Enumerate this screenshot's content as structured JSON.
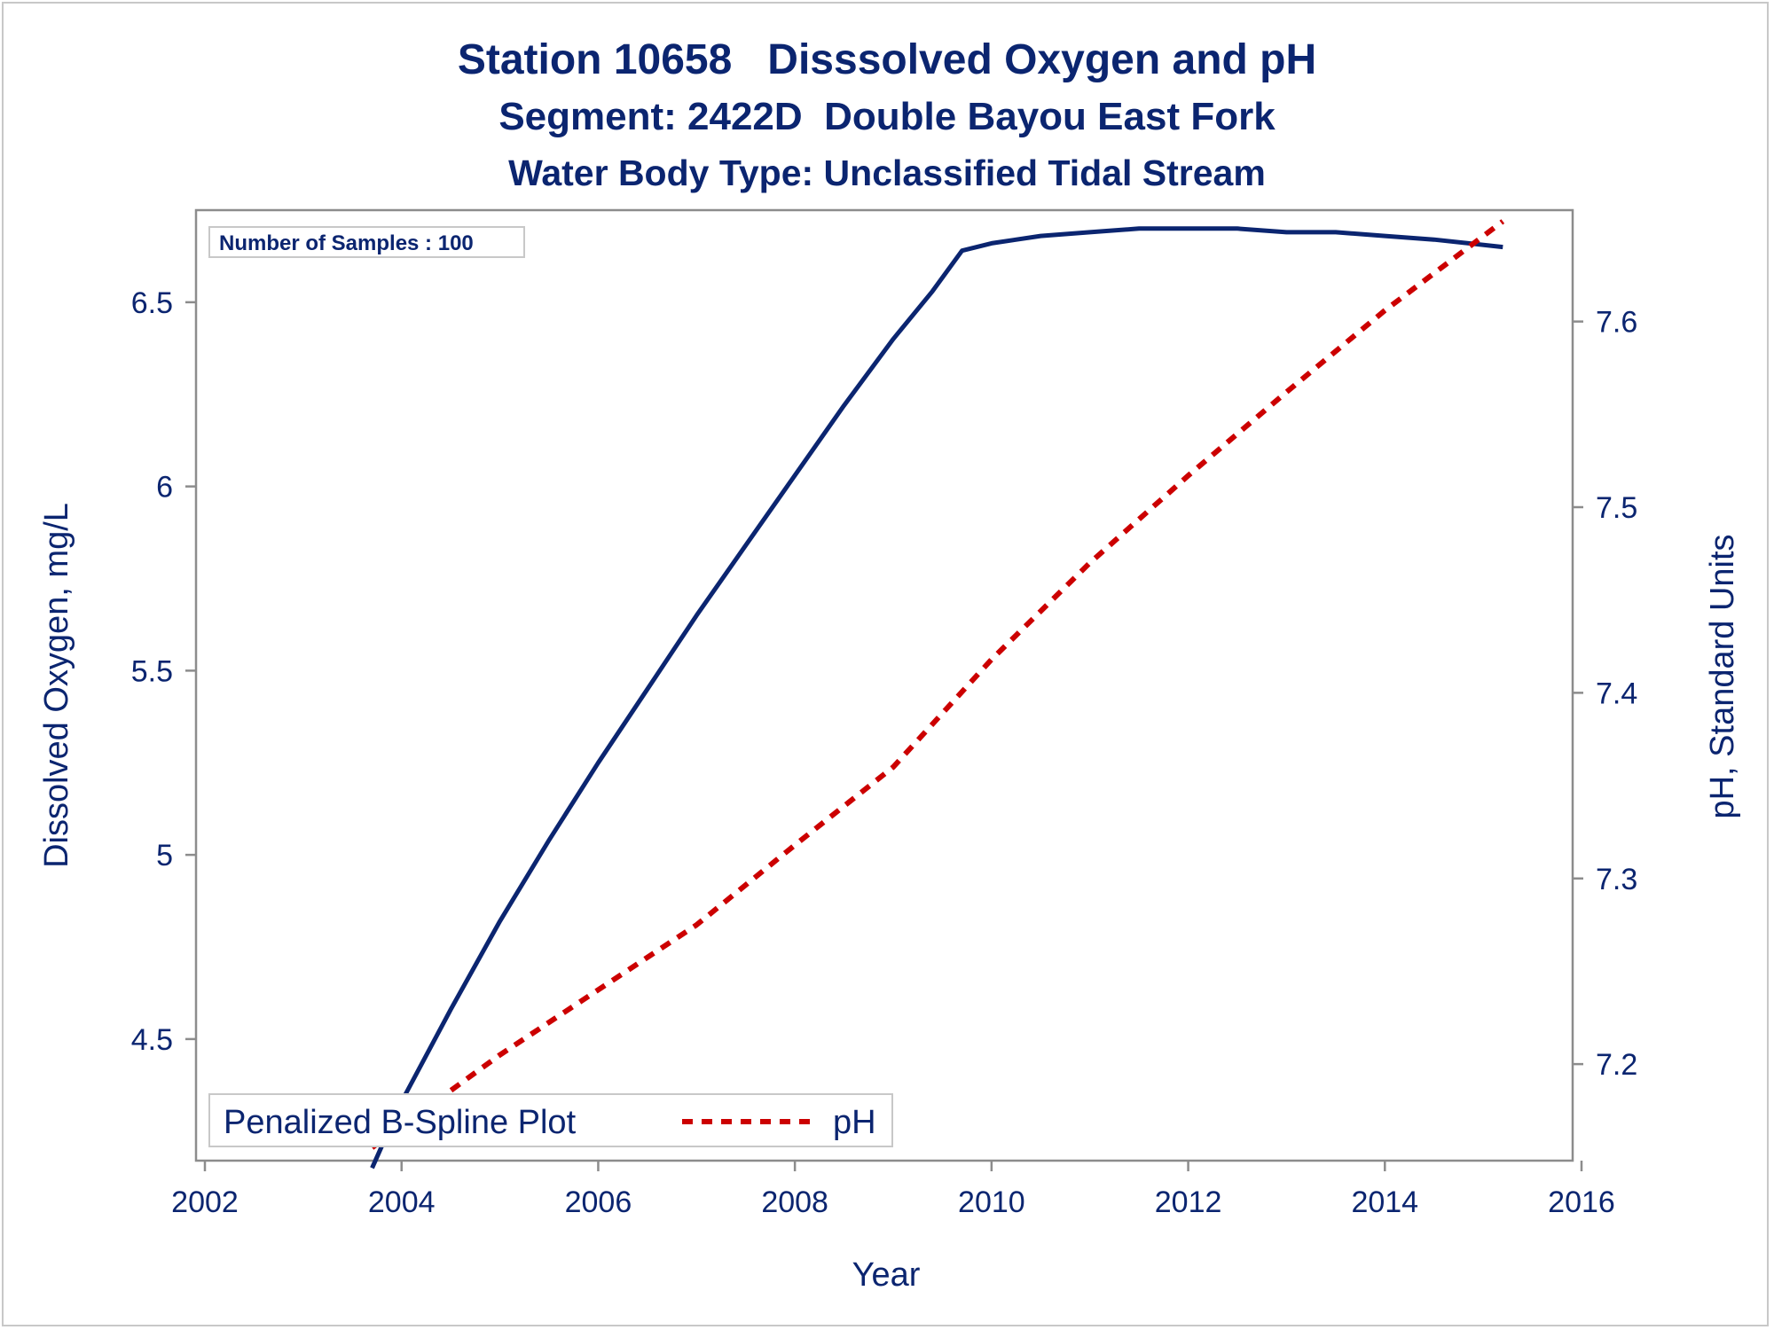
{
  "chart_data": {
    "type": "line",
    "title": "Station 10658   Disssolved Oxygen and pH",
    "subtitle": "Segment: 2422D  Double Bayou East Fork",
    "subtitle2": "Water Body Type: Unclassified Tidal Stream",
    "xlabel": "Year",
    "ylabel_left": "Dissolved Oxygen, mg/L",
    "ylabel_right": "pH, Standard Units",
    "inset_text": "Number of Samples : 100",
    "legend_title": "Penalized B-Spline Plot",
    "legend_placement": "bottom-left",
    "grid": false,
    "xlim": [
      2002,
      2016
    ],
    "ylim_left": [
      4.17,
      6.75
    ],
    "ylim_right": [
      7.148,
      7.66
    ],
    "x_ticks": [
      "2002",
      "2004",
      "2006",
      "2008",
      "2010",
      "2012",
      "2014",
      "2016"
    ],
    "y_left_ticks": [
      "4.5",
      "5",
      "5.5",
      "6",
      "6.5"
    ],
    "y_right_ticks": [
      "7.2",
      "7.3",
      "7.4",
      "7.5",
      "7.6"
    ],
    "colors": {
      "dissolved_oxygen": "#0b2570",
      "ph": "#cc0000",
      "frame": "#8c8c8c"
    },
    "series": [
      {
        "axis": "left",
        "style": "solid",
        "x": [
          2003.7,
          2004.0,
          2004.5,
          2005.0,
          2005.5,
          2006.0,
          2006.5,
          2007.0,
          2007.5,
          2008.0,
          2008.5,
          2009.0,
          2009.4,
          2009.7,
          2010.0,
          2010.5,
          2011.0,
          2011.5,
          2012.0,
          2012.5,
          2013.0,
          2013.5,
          2014.0,
          2014.5,
          2015.2
        ],
        "values": [
          4.15,
          4.33,
          4.58,
          4.82,
          5.04,
          5.25,
          5.45,
          5.65,
          5.84,
          6.03,
          6.22,
          6.4,
          6.53,
          6.64,
          6.66,
          6.68,
          6.69,
          6.7,
          6.7,
          6.7,
          6.69,
          6.69,
          6.68,
          6.67,
          6.65
        ]
      },
      {
        "name": "pH",
        "axis": "right",
        "style": "dashed",
        "x": [
          2003.7,
          2005.0,
          2006.0,
          2007.0,
          2008.0,
          2009.0,
          2010.0,
          2011.0,
          2012.0,
          2013.0,
          2014.0,
          2015.2
        ],
        "values": [
          7.155,
          7.205,
          7.24,
          7.275,
          7.318,
          7.36,
          7.418,
          7.47,
          7.517,
          7.562,
          7.606,
          7.654
        ]
      }
    ]
  }
}
